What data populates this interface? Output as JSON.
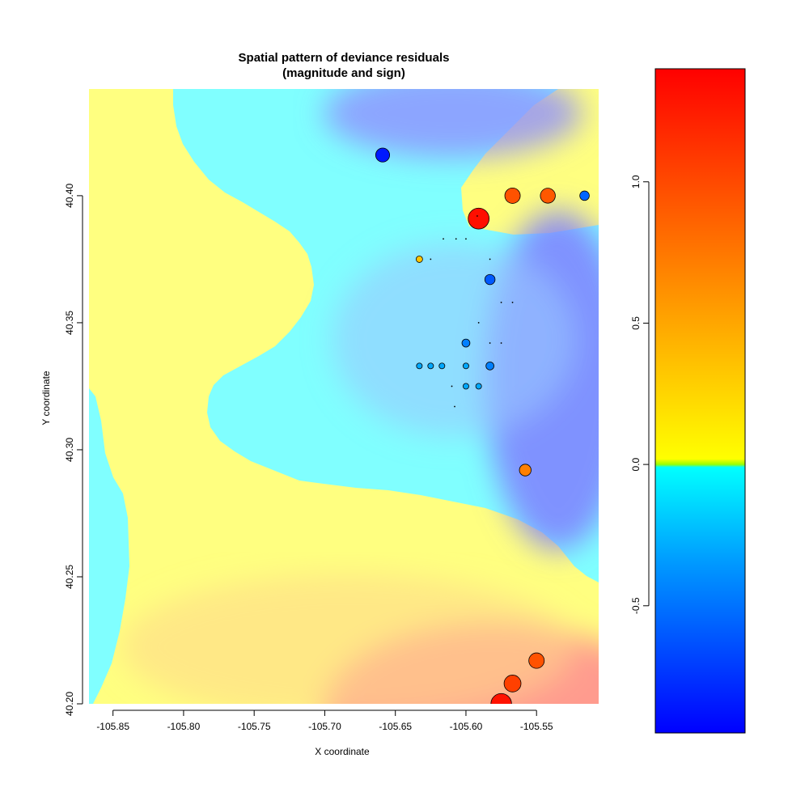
{
  "chart_data": [
    {
      "type": "scatter",
      "title": "Spatial pattern of  deviance residuals\n(magnitude and sign)",
      "xlabel": "X coordinate",
      "ylabel": "Y coordinate",
      "xlim": [
        -105.867,
        -105.506
      ],
      "ylim": [
        40.2,
        40.442
      ],
      "xticks": [
        -105.85,
        -105.8,
        -105.75,
        -105.7,
        -105.65,
        -105.6,
        -105.55
      ],
      "xtick_labels": [
        "-105.85",
        "-105.80",
        "-105.75",
        "-105.70",
        "-105.65",
        "-105.60",
        "-105.55"
      ],
      "yticks": [
        40.2,
        40.25,
        40.3,
        40.35,
        40.4
      ],
      "ytick_labels": [
        "40.20",
        "40.25",
        "40.30",
        "40.35",
        "40.40"
      ],
      "background": "interpolated residual surface: yellow (positive) / cyan-to-blue (negative), red toward bottom",
      "point_encoding": "circle size = residual magnitude, circle color = residual sign and value",
      "points": [
        {
          "x": -105.659,
          "y": 40.416,
          "r": -0.85
        },
        {
          "x": -105.591,
          "y": 40.391,
          "r": 1.32
        },
        {
          "x": -105.567,
          "y": 40.4,
          "r": 0.95
        },
        {
          "x": -105.542,
          "y": 40.4,
          "r": 0.92
        },
        {
          "x": -105.516,
          "y": 40.4,
          "r": -0.55
        },
        {
          "x": -105.633,
          "y": 40.375,
          "r": 0.35
        },
        {
          "x": -105.583,
          "y": 40.367,
          "r": -0.6
        },
        {
          "x": -105.6,
          "y": 40.342,
          "r": -0.45
        },
        {
          "x": -105.583,
          "y": 40.333,
          "r": -0.45
        },
        {
          "x": -105.6,
          "y": 40.333,
          "r": -0.3
        },
        {
          "x": -105.633,
          "y": 40.333,
          "r": -0.3
        },
        {
          "x": -105.625,
          "y": 40.333,
          "r": -0.3
        },
        {
          "x": -105.617,
          "y": 40.333,
          "r": -0.3
        },
        {
          "x": -105.6,
          "y": 40.325,
          "r": -0.3
        },
        {
          "x": -105.591,
          "y": 40.325,
          "r": -0.3
        },
        {
          "x": -105.558,
          "y": 40.292,
          "r": 0.7
        },
        {
          "x": -105.55,
          "y": 40.217,
          "r": 0.95
        },
        {
          "x": -105.567,
          "y": 40.208,
          "r": 1.05
        },
        {
          "x": -105.575,
          "y": 40.2,
          "r": 1.3
        },
        {
          "x": -105.61,
          "y": 40.325,
          "r": 0.05
        },
        {
          "x": -105.607,
          "y": 40.383,
          "r": 0.05
        },
        {
          "x": -105.6,
          "y": 40.383,
          "r": 0.05
        },
        {
          "x": -105.616,
          "y": 40.383,
          "r": 0.05
        },
        {
          "x": -105.625,
          "y": 40.375,
          "r": 0.05
        },
        {
          "x": -105.592,
          "y": 40.392,
          "r": 0.05
        },
        {
          "x": -105.583,
          "y": 40.375,
          "r": 0.05
        },
        {
          "x": -105.575,
          "y": 40.358,
          "r": 0.05
        },
        {
          "x": -105.567,
          "y": 40.358,
          "r": 0.05
        },
        {
          "x": -105.575,
          "y": 40.342,
          "r": 0.05
        },
        {
          "x": -105.583,
          "y": 40.342,
          "r": 0.05
        },
        {
          "x": -105.591,
          "y": 40.35,
          "r": 0.05
        },
        {
          "x": -105.608,
          "y": 40.317,
          "r": 0.05
        }
      ]
    },
    {
      "type": "colorbar",
      "range": [
        -0.95,
        1.4
      ],
      "ticks": [
        -0.5,
        0.0,
        0.5,
        1.0
      ],
      "tick_labels": [
        "-0.5",
        "0.0",
        "0.5",
        "1.0"
      ],
      "stops": [
        {
          "value": -0.95,
          "color": "#0000ff"
        },
        {
          "value": -0.35,
          "color": "#0099ff"
        },
        {
          "value": -0.01,
          "color": "#00ffff"
        },
        {
          "value": 0.0,
          "color": "#99ff00"
        },
        {
          "value": 0.02,
          "color": "#ffff00"
        },
        {
          "value": 0.3,
          "color": "#ffcc00"
        },
        {
          "value": 0.75,
          "color": "#ff7700"
        },
        {
          "value": 1.4,
          "color": "#ff0000"
        }
      ]
    }
  ],
  "colors": {
    "positive_surface": "#ffff80",
    "negative_surface": "#80ffff",
    "strong_negative_surface": "#8080ff",
    "strong_positive_surface": "#ff8080"
  }
}
